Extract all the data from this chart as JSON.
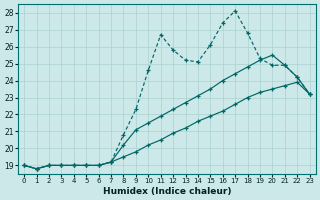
{
  "xlabel": "Humidex (Indice chaleur)",
  "bg_color": "#cce8e8",
  "grid_color": "#b0d4d4",
  "line_color": "#006666",
  "xlim": [
    -0.5,
    23.5
  ],
  "ylim": [
    18.5,
    28.5
  ],
  "xticks": [
    0,
    1,
    2,
    3,
    4,
    5,
    6,
    7,
    8,
    9,
    10,
    11,
    12,
    13,
    14,
    15,
    16,
    17,
    18,
    19,
    20,
    21,
    22,
    23
  ],
  "yticks": [
    19,
    20,
    21,
    22,
    23,
    24,
    25,
    26,
    27,
    28
  ],
  "series_jagged": [
    19.0,
    18.8,
    19.0,
    19.0,
    19.0,
    19.0,
    19.0,
    19.2,
    20.8,
    22.3,
    24.6,
    26.7,
    25.8,
    25.2,
    25.1,
    26.1,
    27.4,
    28.1,
    26.8,
    25.3,
    24.9,
    24.9,
    24.2,
    23.2
  ],
  "series_mid": [
    19.0,
    18.8,
    19.0,
    19.0,
    19.0,
    19.0,
    19.0,
    19.2,
    20.2,
    21.1,
    21.5,
    21.9,
    22.3,
    22.7,
    23.1,
    23.5,
    24.0,
    24.4,
    24.8,
    25.2,
    25.5,
    24.9,
    24.2,
    23.2
  ],
  "series_low": [
    19.0,
    18.8,
    19.0,
    19.0,
    19.0,
    19.0,
    19.0,
    19.2,
    19.5,
    19.8,
    20.2,
    20.5,
    20.9,
    21.2,
    21.6,
    21.9,
    22.2,
    22.6,
    23.0,
    23.3,
    23.5,
    23.7,
    23.9,
    23.2
  ]
}
